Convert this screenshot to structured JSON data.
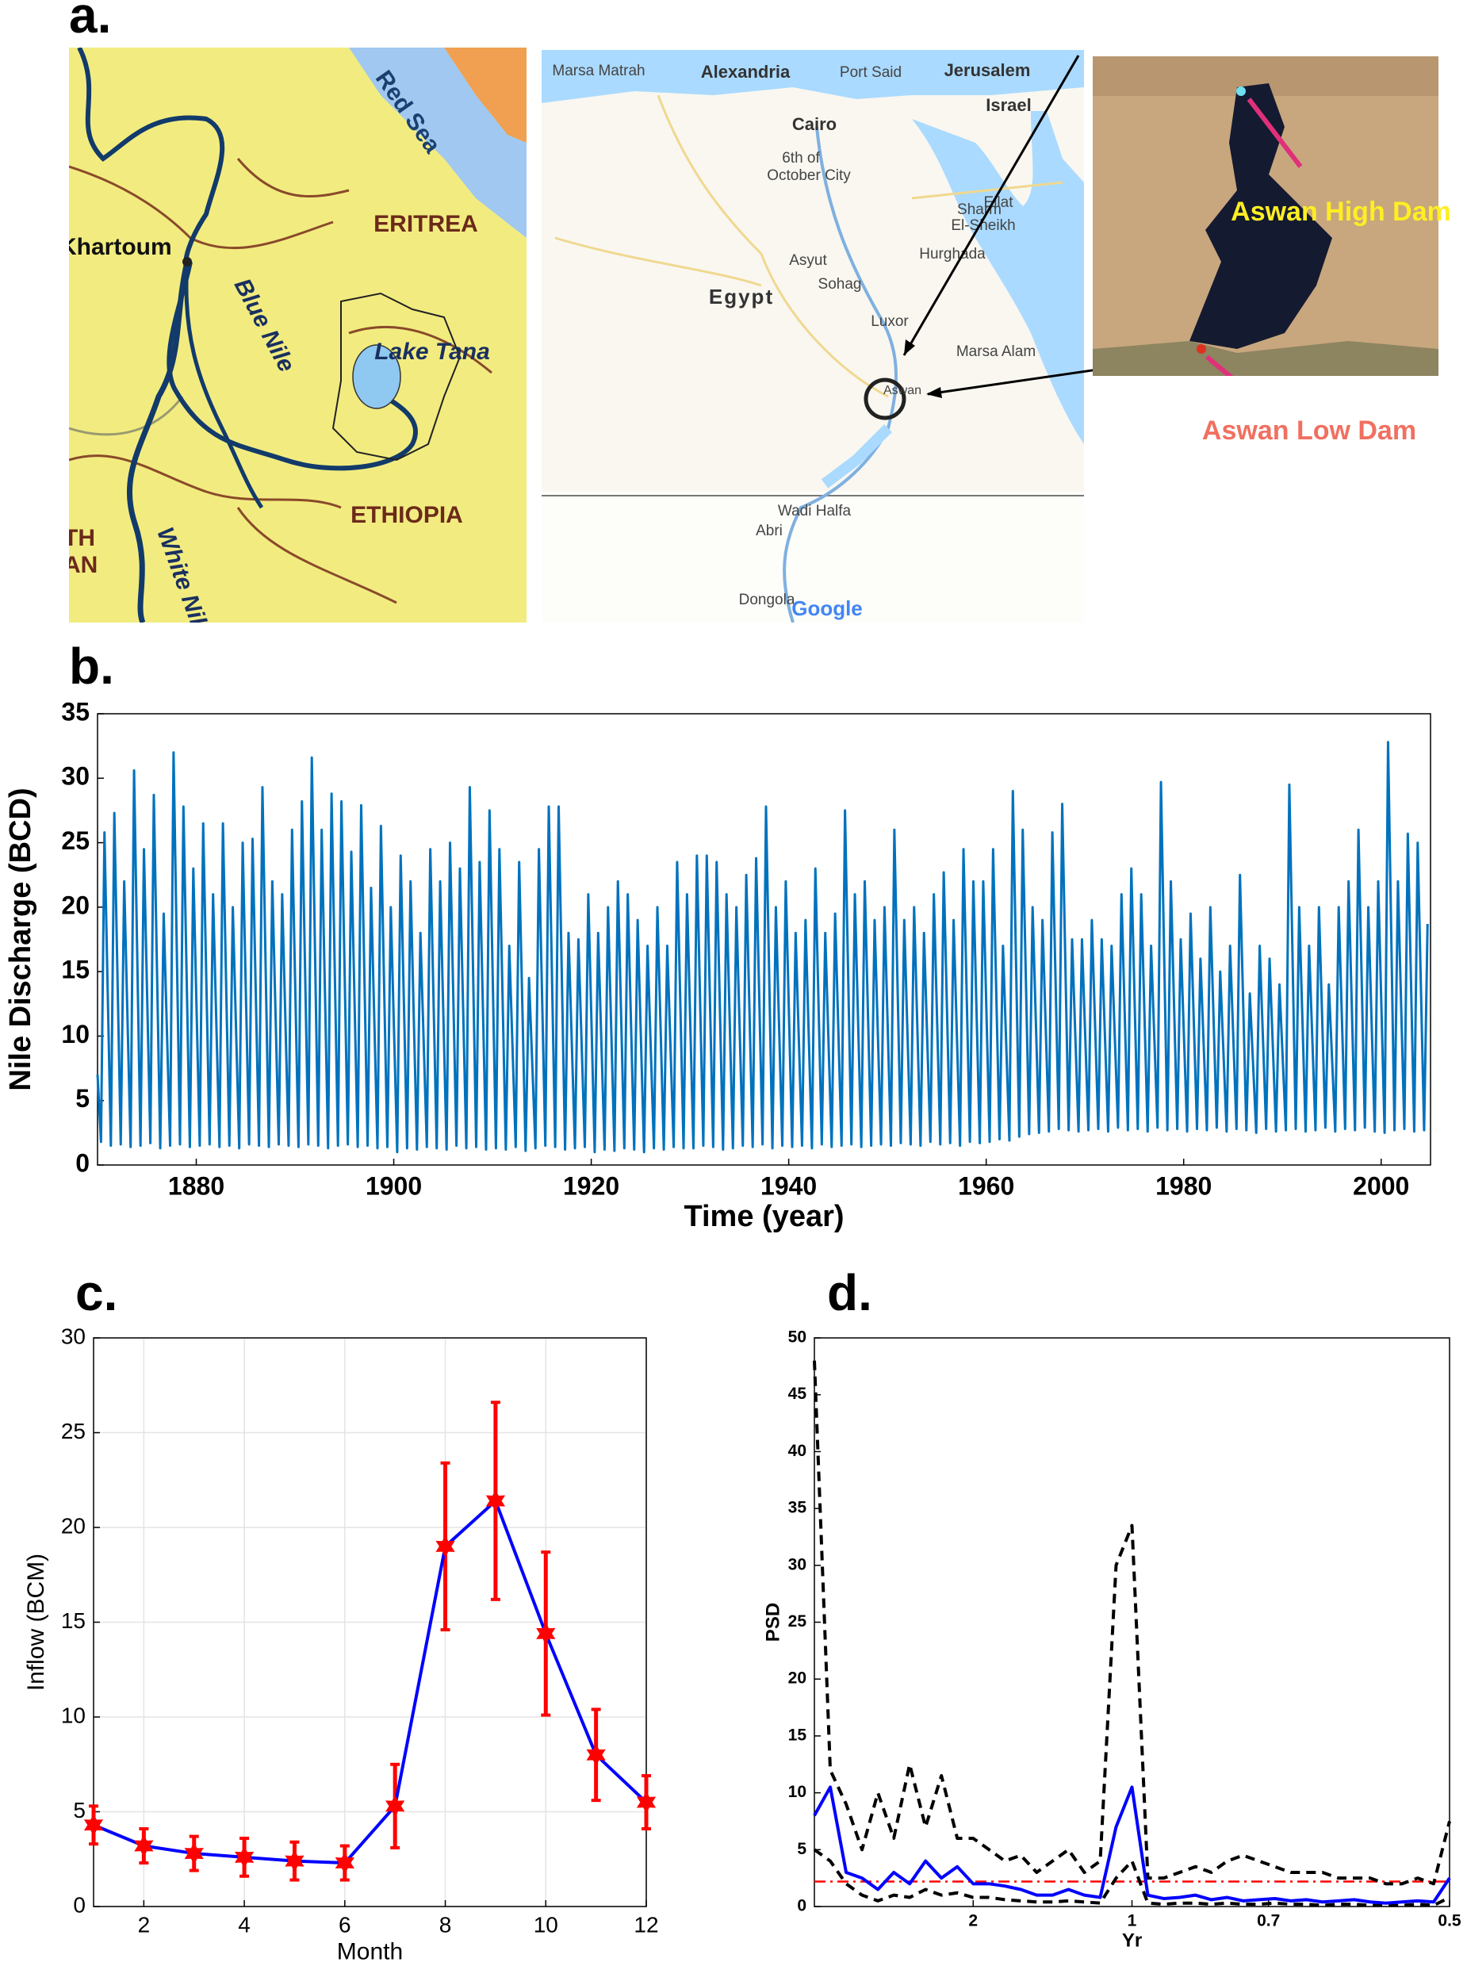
{
  "figure": {
    "panel_labels": [
      "a.",
      "b.",
      "c.",
      "d."
    ],
    "map_left": {
      "red_sea": "Red Sea",
      "eritrea": "ERITREA",
      "khartoum": "Khartoum",
      "blue_nile": "Blue Nile",
      "lake_tana": "Lake Tana",
      "ethiopia": "ETHIOPIA",
      "white_nile": "White Nile",
      "cut_1": "TH",
      "cut_2": "AN"
    },
    "map_middle": {
      "marsa_matrah": "Marsa Matrah",
      "alexandria": "Alexandria",
      "port_said": "Port Said",
      "jerusalem": "Jerusalem",
      "israel": "Israel",
      "cairo": "Cairo",
      "october_1": "6th of",
      "october_2": "October City",
      "eilat": "Eilat",
      "sharm_1": "Sharm",
      "sharm_2": "El-Sheikh",
      "hurghada": "Hurghada",
      "asyut": "Asyut",
      "sohag": "Sohag",
      "egypt": "Egypt",
      "luxor": "Luxor",
      "marsa_alam": "Marsa Alam",
      "aswan": "Aswan",
      "wadi_halfa": "Wadi Halfa",
      "abri": "Abri",
      "dongola": "Dongola",
      "google": "Google"
    },
    "satellite": {
      "high_dam": "Aswan High Dam",
      "low_dam": "Aswan Low Dam"
    }
  },
  "chart_data": [
    {
      "type": "line",
      "x_label": "Time (year)",
      "y_label": "Nile Discharge (BCD)",
      "xlim": [
        1870,
        2005
      ],
      "xticks": [
        1880,
        1900,
        1920,
        1940,
        1960,
        1980,
        2000
      ],
      "ylim": [
        0,
        35
      ],
      "yticks": [
        0,
        5,
        10,
        15,
        20,
        25,
        30,
        35
      ],
      "grid": false,
      "x": [
        1870,
        1870.35,
        1870.7,
        1871.35,
        1871.7,
        1872.35,
        1872.7,
        1873.35,
        1873.7,
        1874.35,
        1874.7,
        1875.35,
        1875.7,
        1876.35,
        1876.7,
        1877.35,
        1877.7,
        1878.35,
        1878.7,
        1879.35,
        1879.7,
        1880.35,
        1880.7,
        1881.35,
        1881.7,
        1882.35,
        1882.7,
        1883.35,
        1883.7,
        1884.35,
        1884.7,
        1885.35,
        1885.7,
        1886.35,
        1886.7,
        1887.35,
        1887.7,
        1888.35,
        1888.7,
        1889.35,
        1889.7,
        1890.35,
        1890.7,
        1891.35,
        1891.7,
        1892.35,
        1892.7,
        1893.35,
        1893.7,
        1894.35,
        1894.7,
        1895.35,
        1895.7,
        1896.35,
        1896.7,
        1897.35,
        1897.7,
        1898.35,
        1898.7,
        1899.35,
        1899.7,
        1900.35,
        1900.7,
        1901.35,
        1901.7,
        1902.35,
        1902.7,
        1903.35,
        1903.7,
        1904.35,
        1904.7,
        1905.35,
        1905.7,
        1906.35,
        1906.7,
        1907.35,
        1907.7,
        1908.35,
        1908.7,
        1909.35,
        1909.7,
        1910.35,
        1910.7,
        1911.35,
        1911.7,
        1912.35,
        1912.7,
        1913.35,
        1913.7,
        1914.35,
        1914.7,
        1915.35,
        1915.7,
        1916.35,
        1916.7,
        1917.35,
        1917.7,
        1918.35,
        1918.7,
        1919.35,
        1919.7,
        1920.35,
        1920.7,
        1921.35,
        1921.7,
        1922.35,
        1922.7,
        1923.35,
        1923.7,
        1924.35,
        1924.7,
        1925.35,
        1925.7,
        1926.35,
        1926.7,
        1927.35,
        1927.7,
        1928.35,
        1928.7,
        1929.35,
        1929.7,
        1930.35,
        1930.7,
        1931.35,
        1931.7,
        1932.35,
        1932.7,
        1933.35,
        1933.7,
        1934.35,
        1934.7,
        1935.35,
        1935.7,
        1936.35,
        1936.7,
        1937.35,
        1937.7,
        1938.35,
        1938.7,
        1939.35,
        1939.7,
        1940.35,
        1940.7,
        1941.35,
        1941.7,
        1942.35,
        1942.7,
        1943.35,
        1943.7,
        1944.35,
        1944.7,
        1945.35,
        1945.7,
        1946.35,
        1946.7,
        1947.35,
        1947.7,
        1948.35,
        1948.7,
        1949.35,
        1949.7,
        1950.35,
        1950.7,
        1951.35,
        1951.7,
        1952.35,
        1952.7,
        1953.35,
        1953.7,
        1954.35,
        1954.7,
        1955.35,
        1955.7,
        1956.35,
        1956.7,
        1957.35,
        1957.7,
        1958.35,
        1958.7,
        1959.35,
        1959.7,
        1960.35,
        1960.7,
        1961.35,
        1961.7,
        1962.35,
        1962.7,
        1963.35,
        1963.7,
        1964.35,
        1964.7,
        1965.35,
        1965.7,
        1966.35,
        1966.7,
        1967.35,
        1967.7,
        1968.35,
        1968.7,
        1969.35,
        1969.7,
        1970.35,
        1970.7,
        1971.35,
        1971.7,
        1972.35,
        1972.7,
        1973.35,
        1973.7,
        1974.35,
        1974.7,
        1975.35,
        1975.7,
        1976.35,
        1976.7,
        1977.35,
        1977.7,
        1978.35,
        1978.7,
        1979.35,
        1979.7,
        1980.35,
        1980.7,
        1981.35,
        1981.7,
        1982.35,
        1982.7,
        1983.35,
        1983.7,
        1984.35,
        1984.7,
        1985.35,
        1985.7,
        1986.35,
        1986.7,
        1987.35,
        1987.7,
        1988.35,
        1988.7,
        1989.35,
        1989.7,
        1990.35,
        1990.7,
        1991.35,
        1991.7,
        1992.35,
        1992.7,
        1993.35,
        1993.7,
        1994.35,
        1994.7,
        1995.35,
        1995.7,
        1996.35,
        1996.7,
        1997.35,
        1997.7,
        1998.35,
        1998.7,
        1999.35,
        1999.7,
        2000.35,
        2000.7,
        2001.35,
        2001.7,
        2002.35,
        2002.7,
        2003.35,
        2003.7,
        2004.35,
        2004.7
      ],
      "series": [
        {
          "color": "#0072bd",
          "values": [
            7,
            1.8,
            25.8,
            1.5,
            27.3,
            1.6,
            22,
            1.4,
            30.6,
            1.5,
            24.5,
            1.7,
            28.7,
            1.3,
            19.5,
            1.5,
            32,
            1.6,
            27.8,
            1.4,
            23,
            1.5,
            26.5,
            1.6,
            21,
            1.4,
            26.5,
            1.5,
            20,
            1.3,
            25,
            1.6,
            25.3,
            1.5,
            29.3,
            1.4,
            22,
            1.6,
            21,
            1.5,
            26,
            1.4,
            28.2,
            1.6,
            31.6,
            1.5,
            26,
            1.3,
            28.8,
            1.5,
            28.2,
            1.6,
            24.3,
            1.4,
            27.9,
            1.5,
            21.5,
            1.3,
            26.3,
            1.4,
            20,
            1.0,
            24,
            1.3,
            22,
            1.2,
            18,
            1.4,
            24.5,
            1.3,
            22,
            1.2,
            25,
            1.5,
            23,
            1.3,
            29.3,
            1.4,
            23.5,
            1.2,
            27.5,
            1.3,
            24.5,
            1.2,
            17,
            1.4,
            23.5,
            1.1,
            14.5,
            1.3,
            24.5,
            1.5,
            27.8,
            1.4,
            27.8,
            1.2,
            18,
            1.3,
            17.5,
            1.4,
            21,
            1.0,
            18,
            1.2,
            20,
            1.1,
            22,
            1.3,
            21,
            1.2,
            19,
            1.0,
            17,
            1.3,
            20,
            1.2,
            17,
            1.4,
            23.5,
            1.3,
            21,
            1.3,
            24,
            1.5,
            24,
            1.4,
            23.5,
            1.2,
            21,
            1.3,
            20,
            1.5,
            22.5,
            1.4,
            23.8,
            1.6,
            27.8,
            1.3,
            20,
            1.5,
            22,
            1.4,
            18,
            1.5,
            19,
            1.3,
            23,
            1.6,
            18,
            1.4,
            19.5,
            1.5,
            27.5,
            1.6,
            21,
            1.4,
            22,
            1.5,
            19,
            1.6,
            20,
            1.5,
            26,
            1.7,
            19,
            1.6,
            20,
            1.5,
            18,
            1.8,
            21,
            1.6,
            22.7,
            1.7,
            19,
            1.5,
            24.5,
            1.8,
            22,
            1.7,
            22,
            1.8,
            24.5,
            2.0,
            17,
            1.9,
            29,
            2.2,
            26,
            2.4,
            20,
            2.5,
            19,
            2.6,
            25.8,
            2.8,
            28,
            2.7,
            17.5,
            2.6,
            17.5,
            2.7,
            19,
            2.8,
            17.5,
            2.6,
            17,
            2.9,
            21,
            2.7,
            23,
            2.8,
            21,
            2.6,
            17,
            2.9,
            29.7,
            2.7,
            22,
            2.8,
            17.5,
            2.6,
            19.5,
            2.8,
            16,
            2.7,
            20,
            2.9,
            15,
            2.6,
            17,
            2.8,
            22.5,
            2.7,
            13.3,
            2.5,
            17,
            2.8,
            16,
            2.6,
            14,
            2.7,
            29.5,
            2.8,
            20,
            2.6,
            17,
            2.7,
            20,
            2.9,
            14,
            2.6,
            20,
            2.8,
            22,
            2.7,
            26,
            2.9,
            20,
            2.6,
            22,
            2.5,
            32.8,
            2.7,
            22,
            2.8,
            25.7,
            2.6,
            25,
            2.7,
            18.7
          ]
        }
      ]
    },
    {
      "type": "line",
      "x_label": "Month",
      "y_label": "Inflow (BCM)",
      "xlim": [
        1,
        12
      ],
      "xticks": [
        2,
        4,
        6,
        8,
        10,
        12
      ],
      "ylim": [
        0,
        30
      ],
      "yticks": [
        0,
        5,
        10,
        15,
        20,
        25,
        30
      ],
      "grid": true,
      "x": [
        1,
        2,
        3,
        4,
        5,
        6,
        7,
        8,
        9,
        10,
        11,
        12
      ],
      "series": [
        {
          "color": "#0000ff",
          "marker": "hexagram",
          "marker_color": "#ff0000",
          "values": [
            4.3,
            3.2,
            2.8,
            2.6,
            2.4,
            2.3,
            5.3,
            19,
            21.4,
            14.4,
            8,
            5.5
          ],
          "errors": [
            1,
            0.9,
            0.9,
            1,
            1,
            0.9,
            2.2,
            4.4,
            5.2,
            4.3,
            2.4,
            1.4
          ]
        }
      ]
    },
    {
      "type": "line",
      "x_label": "Yr",
      "y_label": "PSD",
      "xlim": [
        0,
        2
      ],
      "xticks": [
        {
          "value": 0.5,
          "label": "2"
        },
        {
          "value": 1,
          "label": "1"
        },
        {
          "value": 1.43,
          "label": "0.7"
        },
        {
          "value": 2,
          "label": "0.5"
        }
      ],
      "ylim": [
        0,
        50
      ],
      "yticks": [
        0,
        5,
        10,
        15,
        20,
        25,
        30,
        35,
        40,
        45,
        50
      ],
      "grid": false,
      "x": [
        0,
        0.05,
        0.1,
        0.15,
        0.2,
        0.25,
        0.3,
        0.35,
        0.4,
        0.45,
        0.5,
        0.55,
        0.6,
        0.65,
        0.7,
        0.75,
        0.8,
        0.85,
        0.9,
        0.95,
        1,
        1.05,
        1.1,
        1.15,
        1.2,
        1.25,
        1.3,
        1.35,
        1.4,
        1.45,
        1.5,
        1.55,
        1.6,
        1.65,
        1.7,
        1.75,
        1.8,
        1.85,
        1.9,
        1.95,
        2
      ],
      "hline": {
        "value": 2.2,
        "color": "#ff0000",
        "dash": "dashdot"
      },
      "series": [
        {
          "color": "#000000",
          "dash": "dashed",
          "values": [
            48,
            12,
            9,
            5,
            10,
            6,
            12.5,
            7,
            11.5,
            6,
            6,
            5,
            4,
            4.5,
            3,
            4,
            5,
            3,
            4,
            30,
            33.5,
            2.5,
            2.5,
            3,
            3.5,
            3,
            4,
            4.5,
            4,
            3.5,
            3,
            3,
            3,
            2.5,
            2.5,
            2.5,
            2,
            2,
            2.5,
            2,
            7.5
          ]
        },
        {
          "color": "#000000",
          "dash": "dashed",
          "values": [
            5,
            4,
            2,
            1,
            0.5,
            1,
            0.8,
            1.5,
            1,
            1.2,
            0.8,
            0.8,
            0.6,
            0.5,
            0.4,
            0.4,
            0.5,
            0.4,
            0.3,
            2.5,
            4,
            0.3,
            0.2,
            0.3,
            0.3,
            0.2,
            0.3,
            0.2,
            0.2,
            0.3,
            0.2,
            0.2,
            0.1,
            0.2,
            0.2,
            0.1,
            0.1,
            0.1,
            0.2,
            0.1,
            0.8
          ]
        },
        {
          "color": "#0000ff",
          "values": [
            8,
            10.5,
            3,
            2.5,
            1.5,
            3,
            2,
            4,
            2.5,
            3.5,
            2,
            2,
            1.8,
            1.5,
            1,
            1,
            1.5,
            1,
            0.8,
            7,
            10.5,
            1,
            0.7,
            0.8,
            1,
            0.6,
            0.8,
            0.5,
            0.6,
            0.7,
            0.5,
            0.6,
            0.4,
            0.5,
            0.6,
            0.4,
            0.3,
            0.4,
            0.5,
            0.4,
            2.5
          ]
        }
      ]
    }
  ]
}
